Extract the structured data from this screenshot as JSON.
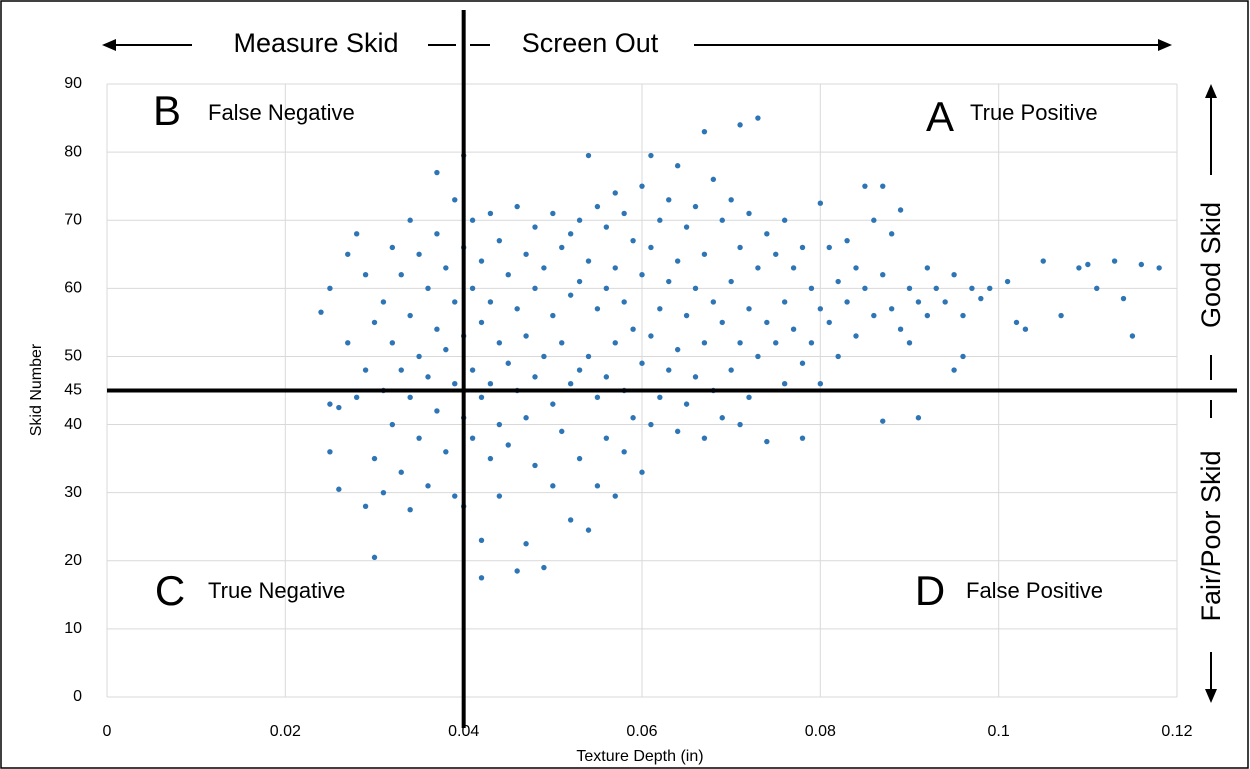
{
  "chart_data": {
    "type": "scatter",
    "x_label": "Texture Depth (in)",
    "y_label": "Skid Number",
    "color": "#2e75b6",
    "grid": true,
    "xlim": [
      0,
      0.12
    ],
    "xticks": [
      0,
      0.02,
      0.04,
      0.06,
      0.08,
      0.1,
      0.12
    ],
    "ylim": [
      0,
      90
    ],
    "yticks": [
      0,
      10,
      20,
      30,
      40,
      45,
      50,
      60,
      70,
      80,
      90
    ],
    "thresholds": {
      "x": 0.04,
      "y": 45
    },
    "annotations": {
      "left": "Measure Skid",
      "right": "Screen Out",
      "b_letter": "B",
      "b_text": "False Negative",
      "a_letter": "A",
      "a_text": "True Positive",
      "c_letter": "C",
      "c_text": "True Negative",
      "d_letter": "D",
      "d_text": "False Positive",
      "good": "Good Skid",
      "poor": "Fair/Poor Skid"
    },
    "x": [
      0.024,
      0.025,
      0.025,
      0.025,
      0.026,
      0.026,
      0.027,
      0.027,
      0.028,
      0.028,
      0.029,
      0.029,
      0.029,
      0.03,
      0.03,
      0.03,
      0.031,
      0.031,
      0.031,
      0.032,
      0.032,
      0.032,
      0.033,
      0.033,
      0.033,
      0.034,
      0.034,
      0.034,
      0.034,
      0.035,
      0.035,
      0.035,
      0.036,
      0.036,
      0.036,
      0.037,
      0.037,
      0.037,
      0.037,
      0.038,
      0.038,
      0.038,
      0.039,
      0.039,
      0.039,
      0.039,
      0.04,
      0.04,
      0.04,
      0.04,
      0.04,
      0.041,
      0.041,
      0.041,
      0.041,
      0.042,
      0.042,
      0.042,
      0.042,
      0.042,
      0.043,
      0.043,
      0.043,
      0.043,
      0.044,
      0.044,
      0.044,
      0.044,
      0.045,
      0.045,
      0.045,
      0.046,
      0.046,
      0.046,
      0.046,
      0.047,
      0.047,
      0.047,
      0.047,
      0.048,
      0.048,
      0.048,
      0.048,
      0.049,
      0.049,
      0.049,
      0.05,
      0.05,
      0.05,
      0.05,
      0.051,
      0.051,
      0.051,
      0.052,
      0.052,
      0.052,
      0.052,
      0.053,
      0.053,
      0.053,
      0.053,
      0.054,
      0.054,
      0.054,
      0.054,
      0.055,
      0.055,
      0.055,
      0.055,
      0.056,
      0.056,
      0.056,
      0.056,
      0.057,
      0.057,
      0.057,
      0.057,
      0.058,
      0.058,
      0.058,
      0.058,
      0.059,
      0.059,
      0.059,
      0.06,
      0.06,
      0.06,
      0.06,
      0.061,
      0.061,
      0.061,
      0.061,
      0.062,
      0.062,
      0.062,
      0.063,
      0.063,
      0.063,
      0.064,
      0.064,
      0.064,
      0.064,
      0.065,
      0.065,
      0.065,
      0.066,
      0.066,
      0.066,
      0.067,
      0.067,
      0.067,
      0.067,
      0.068,
      0.068,
      0.068,
      0.069,
      0.069,
      0.069,
      0.07,
      0.07,
      0.07,
      0.071,
      0.071,
      0.071,
      0.071,
      0.072,
      0.072,
      0.072,
      0.073,
      0.073,
      0.073,
      0.074,
      0.074,
      0.074,
      0.075,
      0.075,
      0.076,
      0.076,
      0.076,
      0.077,
      0.077,
      0.078,
      0.078,
      0.078,
      0.079,
      0.079,
      0.08,
      0.08,
      0.08,
      0.081,
      0.081,
      0.082,
      0.082,
      0.083,
      0.083,
      0.084,
      0.084,
      0.085,
      0.085,
      0.086,
      0.086,
      0.087,
      0.087,
      0.087,
      0.088,
      0.088,
      0.089,
      0.089,
      0.09,
      0.09,
      0.091,
      0.091,
      0.092,
      0.092,
      0.093,
      0.094,
      0.095,
      0.095,
      0.096,
      0.096,
      0.097,
      0.098,
      0.099,
      0.101,
      0.102,
      0.103,
      0.105,
      0.107,
      0.109,
      0.11,
      0.111,
      0.113,
      0.114,
      0.115,
      0.116,
      0.118
    ],
    "values": [
      56.5,
      60,
      43,
      36,
      42.5,
      30.5,
      52,
      65,
      68,
      44,
      62,
      48,
      28,
      20.5,
      55,
      35,
      58,
      45,
      30,
      66,
      52,
      40,
      62,
      48,
      33,
      70,
      56,
      44,
      27.5,
      65,
      50,
      38,
      60,
      47,
      31,
      77,
      68,
      54,
      42,
      63,
      51,
      36,
      73,
      58,
      46,
      29.5,
      79.5,
      66,
      53,
      41,
      28,
      70,
      60,
      48,
      38,
      64,
      55,
      44,
      23,
      17.5,
      71,
      58,
      46,
      35,
      67,
      52,
      40,
      29.5,
      62,
      49,
      37,
      72,
      57,
      45,
      18.5,
      65,
      53,
      41,
      22.5,
      69,
      60,
      47,
      34,
      63,
      50,
      19,
      71,
      56,
      43,
      31,
      66,
      52,
      39,
      68,
      59,
      46,
      26,
      70,
      61,
      48,
      35,
      79.5,
      64,
      50,
      24.5,
      72,
      57,
      44,
      31,
      69,
      60,
      47,
      38,
      74,
      63,
      52,
      29.5,
      71,
      58,
      45,
      36,
      67,
      54,
      41,
      75,
      62,
      49,
      33,
      79.5,
      66,
      53,
      40,
      70,
      57,
      44,
      73,
      61,
      48,
      78,
      64,
      51,
      39,
      69,
      56,
      43,
      72,
      60,
      47,
      83,
      65,
      52,
      38,
      76,
      58,
      45,
      70,
      55,
      41,
      73,
      61,
      48,
      84,
      66,
      52,
      40,
      71,
      57,
      44,
      85,
      63,
      50,
      68,
      55,
      37.5,
      65,
      52,
      70,
      58,
      46,
      63,
      54,
      66,
      49,
      38,
      60,
      52,
      72.5,
      57,
      46,
      66,
      55,
      61,
      50,
      67,
      58,
      63,
      53,
      75,
      60,
      70,
      56,
      75,
      62,
      40.5,
      68,
      57,
      71.5,
      54,
      60,
      52,
      58,
      41,
      63,
      56,
      60,
      58,
      62,
      48,
      56,
      50,
      60,
      58.5,
      60,
      61,
      55,
      54,
      64,
      56,
      63,
      63.5,
      60,
      64,
      58.5,
      53,
      63.5,
      63
    ]
  }
}
